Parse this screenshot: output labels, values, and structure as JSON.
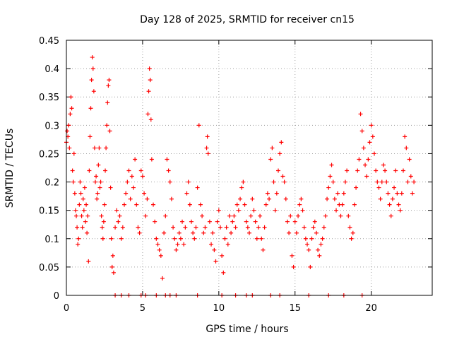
{
  "chart_data": {
    "type": "scatter",
    "title": "Day 128 of 2025, SRMTID for receiver cn15",
    "xlabel": "GPS time / hours",
    "ylabel": "SRMTID / TECUs",
    "xlim": [
      0,
      24
    ],
    "ylim": [
      0,
      0.45
    ],
    "xticks": [
      0,
      5,
      10,
      15,
      20
    ],
    "yticks": [
      0,
      0.05,
      0.1,
      0.15,
      0.2,
      0.25,
      0.3,
      0.35,
      0.4,
      0.45
    ],
    "xtick_labels": [
      "0",
      "5",
      "10",
      "15",
      "20"
    ],
    "ytick_labels": [
      "0",
      "0.05",
      "0.1",
      "0.15",
      "0.2",
      "0.25",
      "0.3",
      "0.35",
      "0.4",
      "0.45"
    ],
    "grid": true,
    "marker": "+",
    "color": "#ff0000",
    "series": [
      {
        "name": "SRMTID",
        "points": [
          [
            0.0,
            0.27
          ],
          [
            0.05,
            0.29
          ],
          [
            0.1,
            0.28
          ],
          [
            0.15,
            0.3
          ],
          [
            0.2,
            0.26
          ],
          [
            0.25,
            0.32
          ],
          [
            0.3,
            0.35
          ],
          [
            0.35,
            0.33
          ],
          [
            0.4,
            0.22
          ],
          [
            0.45,
            0.2
          ],
          [
            0.5,
            0.25
          ],
          [
            0.55,
            0.18
          ],
          [
            0.6,
            0.15
          ],
          [
            0.65,
            0.14
          ],
          [
            0.7,
            0.12
          ],
          [
            0.75,
            0.09
          ],
          [
            0.8,
            0.1
          ],
          [
            0.85,
            0.16
          ],
          [
            0.9,
            0.2
          ],
          [
            0.95,
            0.18
          ],
          [
            1.0,
            0.14
          ],
          [
            1.05,
            0.12
          ],
          [
            1.1,
            0.17
          ],
          [
            1.15,
            0.15
          ],
          [
            1.2,
            0.19
          ],
          [
            1.25,
            0.13
          ],
          [
            1.3,
            0.16
          ],
          [
            1.35,
            0.11
          ],
          [
            1.4,
            0.14
          ],
          [
            1.45,
            0.06
          ],
          [
            1.5,
            0.22
          ],
          [
            1.55,
            0.28
          ],
          [
            1.6,
            0.33
          ],
          [
            1.65,
            0.38
          ],
          [
            1.7,
            0.42
          ],
          [
            1.75,
            0.4
          ],
          [
            1.8,
            0.36
          ],
          [
            1.85,
            0.26
          ],
          [
            1.9,
            0.2
          ],
          [
            1.95,
            0.21
          ],
          [
            2.0,
            0.17
          ],
          [
            2.05,
            0.18
          ],
          [
            2.1,
            0.23
          ],
          [
            2.15,
            0.26
          ],
          [
            2.2,
            0.19
          ],
          [
            2.25,
            0.2
          ],
          [
            2.3,
            0.14
          ],
          [
            2.35,
            0.12
          ],
          [
            2.4,
            0.1
          ],
          [
            2.45,
            0.13
          ],
          [
            2.5,
            0.16
          ],
          [
            2.55,
            0.22
          ],
          [
            2.6,
            0.26
          ],
          [
            2.65,
            0.3
          ],
          [
            2.7,
            0.34
          ],
          [
            2.75,
            0.37
          ],
          [
            2.8,
            0.38
          ],
          [
            2.85,
            0.29
          ],
          [
            2.9,
            0.19
          ],
          [
            2.95,
            0.1
          ],
          [
            3.0,
            0.05
          ],
          [
            3.05,
            0.07
          ],
          [
            3.1,
            0.04
          ],
          [
            3.2,
            0.12
          ],
          [
            3.3,
            0.15
          ],
          [
            3.4,
            0.13
          ],
          [
            3.5,
            0.14
          ],
          [
            3.6,
            0.1
          ],
          [
            3.7,
            0.12
          ],
          [
            3.8,
            0.16
          ],
          [
            3.9,
            0.18
          ],
          [
            4.0,
            0.2
          ],
          [
            4.1,
            0.22
          ],
          [
            4.2,
            0.17
          ],
          [
            4.3,
            0.21
          ],
          [
            4.4,
            0.19
          ],
          [
            4.5,
            0.24
          ],
          [
            4.6,
            0.16
          ],
          [
            4.7,
            0.12
          ],
          [
            4.8,
            0.11
          ],
          [
            4.9,
            0.22
          ],
          [
            5.0,
            0.21
          ],
          [
            5.1,
            0.18
          ],
          [
            5.2,
            0.14
          ],
          [
            5.3,
            0.17
          ],
          [
            5.35,
            0.32
          ],
          [
            5.4,
            0.36
          ],
          [
            5.45,
            0.4
          ],
          [
            5.5,
            0.38
          ],
          [
            5.55,
            0.31
          ],
          [
            5.6,
            0.24
          ],
          [
            5.7,
            0.16
          ],
          [
            5.8,
            0.13
          ],
          [
            5.9,
            0.1
          ],
          [
            6.0,
            0.09
          ],
          [
            6.1,
            0.08
          ],
          [
            6.2,
            0.07
          ],
          [
            6.3,
            0.03
          ],
          [
            6.4,
            0.11
          ],
          [
            6.5,
            0.14
          ],
          [
            6.6,
            0.24
          ],
          [
            6.7,
            0.22
          ],
          [
            6.8,
            0.2
          ],
          [
            6.9,
            0.17
          ],
          [
            7.0,
            0.12
          ],
          [
            7.1,
            0.1
          ],
          [
            7.2,
            0.08
          ],
          [
            7.3,
            0.09
          ],
          [
            7.4,
            0.11
          ],
          [
            7.5,
            0.1
          ],
          [
            7.6,
            0.13
          ],
          [
            7.7,
            0.09
          ],
          [
            7.8,
            0.12
          ],
          [
            7.9,
            0.18
          ],
          [
            8.0,
            0.2
          ],
          [
            8.1,
            0.16
          ],
          [
            8.2,
            0.13
          ],
          [
            8.3,
            0.11
          ],
          [
            8.4,
            0.1
          ],
          [
            8.5,
            0.12
          ],
          [
            8.6,
            0.19
          ],
          [
            8.7,
            0.3
          ],
          [
            8.8,
            0.16
          ],
          [
            8.9,
            0.14
          ],
          [
            9.0,
            0.11
          ],
          [
            9.1,
            0.12
          ],
          [
            9.2,
            0.26
          ],
          [
            9.25,
            0.28
          ],
          [
            9.3,
            0.25
          ],
          [
            9.4,
            0.13
          ],
          [
            9.5,
            0.09
          ],
          [
            9.6,
            0.11
          ],
          [
            9.7,
            0.08
          ],
          [
            9.8,
            0.06
          ],
          [
            9.9,
            0.13
          ],
          [
            10.0,
            0.15
          ],
          [
            10.1,
            0.12
          ],
          [
            10.2,
            0.07
          ],
          [
            10.3,
            0.04
          ],
          [
            10.4,
            0.1
          ],
          [
            10.5,
            0.12
          ],
          [
            10.6,
            0.09
          ],
          [
            10.7,
            0.14
          ],
          [
            10.8,
            0.11
          ],
          [
            10.9,
            0.13
          ],
          [
            11.0,
            0.14
          ],
          [
            11.1,
            0.12
          ],
          [
            11.2,
            0.16
          ],
          [
            11.3,
            0.15
          ],
          [
            11.4,
            0.17
          ],
          [
            11.5,
            0.19
          ],
          [
            11.6,
            0.2
          ],
          [
            11.7,
            0.16
          ],
          [
            11.8,
            0.13
          ],
          [
            11.9,
            0.12
          ],
          [
            12.0,
            0.11
          ],
          [
            12.1,
            0.14
          ],
          [
            12.2,
            0.17
          ],
          [
            12.3,
            0.15
          ],
          [
            12.4,
            0.13
          ],
          [
            12.5,
            0.1
          ],
          [
            12.6,
            0.12
          ],
          [
            12.7,
            0.14
          ],
          [
            12.8,
            0.1
          ],
          [
            12.9,
            0.08
          ],
          [
            13.0,
            0.12
          ],
          [
            13.1,
            0.16
          ],
          [
            13.2,
            0.18
          ],
          [
            13.3,
            0.17
          ],
          [
            13.4,
            0.24
          ],
          [
            13.5,
            0.26
          ],
          [
            13.6,
            0.2
          ],
          [
            13.7,
            0.15
          ],
          [
            13.8,
            0.18
          ],
          [
            13.9,
            0.22
          ],
          [
            14.0,
            0.25
          ],
          [
            14.1,
            0.27
          ],
          [
            14.2,
            0.21
          ],
          [
            14.3,
            0.2
          ],
          [
            14.4,
            0.17
          ],
          [
            14.5,
            0.13
          ],
          [
            14.6,
            0.11
          ],
          [
            14.7,
            0.14
          ],
          [
            14.8,
            0.07
          ],
          [
            14.9,
            0.05
          ],
          [
            15.0,
            0.13
          ],
          [
            15.1,
            0.11
          ],
          [
            15.2,
            0.14
          ],
          [
            15.3,
            0.16
          ],
          [
            15.4,
            0.17
          ],
          [
            15.5,
            0.15
          ],
          [
            15.6,
            0.12
          ],
          [
            15.7,
            0.1
          ],
          [
            15.8,
            0.09
          ],
          [
            15.9,
            0.08
          ],
          [
            16.0,
            0.05
          ],
          [
            16.1,
            0.1
          ],
          [
            16.2,
            0.12
          ],
          [
            16.3,
            0.13
          ],
          [
            16.4,
            0.11
          ],
          [
            16.5,
            0.08
          ],
          [
            16.6,
            0.07
          ],
          [
            16.7,
            0.09
          ],
          [
            16.8,
            0.1
          ],
          [
            16.9,
            0.12
          ],
          [
            17.0,
            0.14
          ],
          [
            17.1,
            0.17
          ],
          [
            17.2,
            0.19
          ],
          [
            17.3,
            0.21
          ],
          [
            17.4,
            0.23
          ],
          [
            17.5,
            0.2
          ],
          [
            17.6,
            0.17
          ],
          [
            17.7,
            0.15
          ],
          [
            17.8,
            0.18
          ],
          [
            17.9,
            0.16
          ],
          [
            18.0,
            0.14
          ],
          [
            18.1,
            0.16
          ],
          [
            18.2,
            0.18
          ],
          [
            18.3,
            0.2
          ],
          [
            18.4,
            0.22
          ],
          [
            18.5,
            0.14
          ],
          [
            18.6,
            0.12
          ],
          [
            18.7,
            0.1
          ],
          [
            18.8,
            0.11
          ],
          [
            18.9,
            0.16
          ],
          [
            19.0,
            0.19
          ],
          [
            19.1,
            0.22
          ],
          [
            19.2,
            0.24
          ],
          [
            19.3,
            0.32
          ],
          [
            19.4,
            0.29
          ],
          [
            19.5,
            0.26
          ],
          [
            19.6,
            0.23
          ],
          [
            19.7,
            0.21
          ],
          [
            19.8,
            0.24
          ],
          [
            19.9,
            0.27
          ],
          [
            20.0,
            0.3
          ],
          [
            20.1,
            0.28
          ],
          [
            20.2,
            0.25
          ],
          [
            20.3,
            0.22
          ],
          [
            20.4,
            0.2
          ],
          [
            20.5,
            0.19
          ],
          [
            20.6,
            0.17
          ],
          [
            20.7,
            0.2
          ],
          [
            20.8,
            0.23
          ],
          [
            20.9,
            0.22
          ],
          [
            21.0,
            0.2
          ],
          [
            21.1,
            0.18
          ],
          [
            21.2,
            0.16
          ],
          [
            21.3,
            0.14
          ],
          [
            21.4,
            0.17
          ],
          [
            21.5,
            0.19
          ],
          [
            21.6,
            0.22
          ],
          [
            21.7,
            0.18
          ],
          [
            21.8,
            0.16
          ],
          [
            21.9,
            0.15
          ],
          [
            22.0,
            0.18
          ],
          [
            22.1,
            0.22
          ],
          [
            22.2,
            0.28
          ],
          [
            22.3,
            0.26
          ],
          [
            22.4,
            0.2
          ],
          [
            22.5,
            0.24
          ],
          [
            22.6,
            0.21
          ],
          [
            22.7,
            0.18
          ],
          [
            22.8,
            0.2
          ],
          [
            3.2,
            0
          ],
          [
            3.6,
            0
          ],
          [
            4.1,
            0
          ],
          [
            4.9,
            0
          ],
          [
            5.2,
            0
          ],
          [
            5.9,
            0
          ],
          [
            6.5,
            0
          ],
          [
            6.8,
            0
          ],
          [
            7.2,
            0
          ],
          [
            8.6,
            0
          ],
          [
            10.2,
            0
          ],
          [
            11.1,
            0
          ],
          [
            11.8,
            0
          ],
          [
            12.2,
            0
          ],
          [
            13.4,
            0
          ],
          [
            14.0,
            0
          ],
          [
            15.9,
            0
          ],
          [
            17.2,
            0
          ],
          [
            18.2,
            0
          ],
          [
            19.4,
            0
          ]
        ]
      }
    ]
  }
}
